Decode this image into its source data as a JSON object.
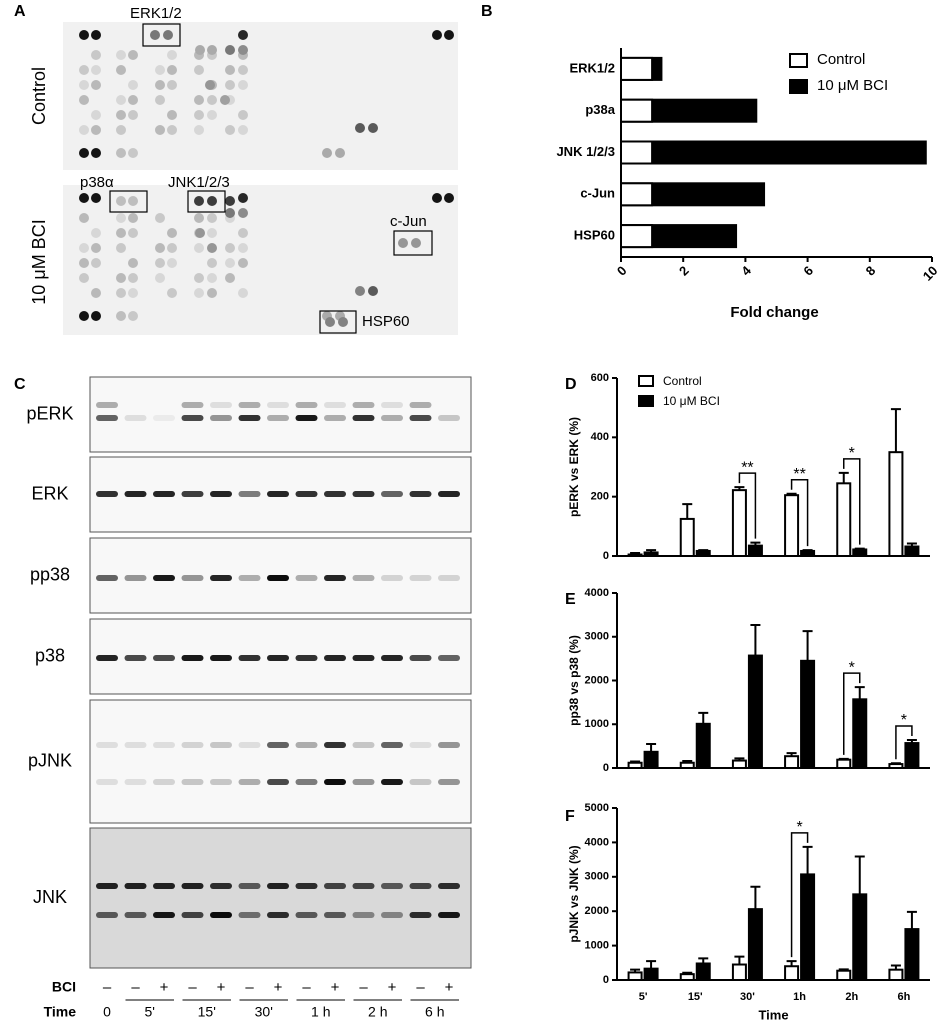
{
  "panel_labels": [
    "A",
    "B",
    "C",
    "D",
    "E",
    "F"
  ],
  "array": {
    "rows": [
      "Control",
      "10 μM BCI"
    ],
    "labels": [
      "ERK1/2",
      "p38α",
      "JNK1/2/3",
      "c-Jun",
      "HSP60"
    ]
  },
  "blot": {
    "rows": [
      "pERK",
      "ERK",
      "pp38",
      "p38",
      "pJNK",
      "JNK"
    ],
    "bci_label": "BCI",
    "bci": [
      "–",
      "–",
      "+",
      "–",
      "+",
      "–",
      "+",
      "–",
      "+",
      "–",
      "+",
      "–",
      "+"
    ],
    "time_label": "Time",
    "times": [
      "0",
      "5'",
      "15'",
      "30'",
      "1 h",
      "2 h",
      "6 h"
    ]
  },
  "chart_data": [
    {
      "type": "bar",
      "orientation": "horizontal",
      "barmode": "overlay",
      "categories": [
        "ERK1/2",
        "p38a",
        "JNK 1/2/3",
        "c-Jun",
        "HSP60"
      ],
      "series": [
        {
          "name": "Control",
          "color": "#ffffff",
          "values": [
            1,
            1,
            1,
            1,
            1
          ]
        },
        {
          "name": "10 μM BCI",
          "color": "#000000",
          "values": [
            1.3,
            4.35,
            9.8,
            4.6,
            3.7
          ]
        }
      ],
      "xlabel": "Fold change",
      "xlim": [
        0,
        10
      ],
      "xticks": [
        0,
        2,
        4,
        6,
        8,
        10
      ],
      "legend": "upper right"
    },
    {
      "type": "bar",
      "ylabel": "pERK vs ERK (%)",
      "ylim": [
        0,
        600
      ],
      "yticks": [
        0,
        200,
        400,
        600
      ],
      "legend": "upper left",
      "series": [
        {
          "name": "Control",
          "color": "#ffffff",
          "values": [
            5,
            125,
            222,
            205,
            245,
            350
          ],
          "errors": [
            5,
            50,
            10,
            5,
            35,
            145
          ]
        },
        {
          "name": "10 μM BCI",
          "color": "#000000",
          "values": [
            12,
            17,
            35,
            17,
            22,
            32
          ],
          "errors": [
            8,
            3,
            10,
            3,
            3,
            10
          ]
        }
      ],
      "significance": [
        null,
        null,
        "**",
        "**",
        "*",
        null
      ]
    },
    {
      "type": "bar",
      "ylabel": "pp38 vs p38 (%)",
      "ylim": [
        0,
        4000
      ],
      "yticks": [
        0,
        1000,
        2000,
        3000,
        4000
      ],
      "series": [
        {
          "name": "Control",
          "color": "#ffffff",
          "values": [
            120,
            120,
            170,
            270,
            190,
            90
          ],
          "errors": [
            30,
            40,
            50,
            70,
            20,
            20
          ]
        },
        {
          "name": "10 μM BCI",
          "color": "#000000",
          "values": [
            370,
            1010,
            2570,
            2450,
            1570,
            570
          ],
          "errors": [
            180,
            250,
            700,
            680,
            280,
            70
          ]
        }
      ],
      "significance": [
        null,
        null,
        null,
        null,
        "*",
        "*"
      ]
    },
    {
      "type": "bar",
      "ylabel": "pJNK vs JNK (%)",
      "xlabel": "Time",
      "ylim": [
        0,
        5000
      ],
      "yticks": [
        0,
        1000,
        2000,
        3000,
        4000,
        5000
      ],
      "categories": [
        "5'",
        "15'",
        "30'",
        "1h",
        "2h",
        "6h"
      ],
      "series": [
        {
          "name": "Control",
          "color": "#ffffff",
          "values": [
            220,
            170,
            450,
            400,
            270,
            300
          ],
          "errors": [
            80,
            40,
            230,
            150,
            40,
            120
          ]
        },
        {
          "name": "10 μM BCI",
          "color": "#000000",
          "values": [
            330,
            480,
            2060,
            3070,
            2490,
            1480
          ],
          "errors": [
            220,
            150,
            650,
            800,
            1100,
            500
          ]
        }
      ],
      "significance": [
        null,
        null,
        null,
        "*",
        null,
        null
      ]
    }
  ]
}
